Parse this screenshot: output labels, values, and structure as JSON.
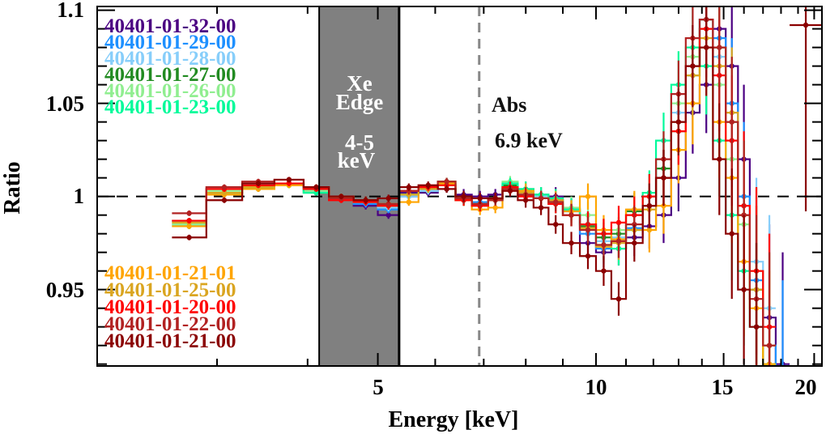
{
  "chart_data": {
    "type": "line",
    "subtype": "step-histogram-with-errorbars",
    "title": "",
    "xlabel": "Energy [keV]",
    "ylabel": "Ratio",
    "xscale": "log",
    "xlim": [
      2.05,
      20.5
    ],
    "ylim": [
      0.909,
      1.102
    ],
    "xticks": [
      5,
      10,
      15,
      20
    ],
    "xtick_labels": [
      "5",
      "10",
      "15",
      "20"
    ],
    "yticks": [
      0.95,
      1,
      1.05,
      1.1
    ],
    "ytick_labels": [
      "0.95",
      "1",
      "1.05",
      "1.1"
    ],
    "grid": false,
    "reference_line": {
      "y": 1,
      "style": "dashed",
      "color": "#000000"
    },
    "shaded_band": {
      "x": [
        4.15,
        5.35
      ],
      "color": "#808080",
      "labels": [
        "Xe",
        "Edge",
        "4-5",
        "keV"
      ]
    },
    "vertical_line": {
      "x": 6.9,
      "style": "dashed",
      "color": "#888888",
      "labels": [
        "Abs",
        "6.9 keV"
      ]
    },
    "bin_edges": [
      2.6,
      2.9,
      3.25,
      3.6,
      3.95,
      4.28,
      4.63,
      5.0,
      5.35,
      5.69,
      6.05,
      6.4,
      6.74,
      7.1,
      7.43,
      7.8,
      8.2,
      8.6,
      9.0,
      9.5,
      10.0,
      10.5,
      11.0,
      11.6,
      12.1,
      12.7,
      13.3,
      13.9,
      14.5,
      15.1,
      15.7,
      16.3,
      17.0,
      17.7,
      18.5,
      20.5
    ],
    "errors": [
      0.0015,
      0.0015,
      0.0015,
      0.0015,
      0.0015,
      0.0015,
      0.002,
      0.002,
      0.002,
      0.002,
      0.002,
      0.003,
      0.003,
      0.003,
      0.003,
      0.004,
      0.004,
      0.005,
      0.006,
      0.007,
      0.008,
      0.009,
      0.01,
      0.012,
      0.015,
      0.018,
      0.022,
      0.026,
      0.03,
      0.035,
      0.04,
      0.045,
      0.05,
      0.06,
      0.1
    ],
    "legend_top": [
      "40401-01-32-00",
      "40401-01-29-00",
      "40401-01-28-00",
      "40401-01-27-00",
      "40401-01-26-00",
      "40401-01-23-00"
    ],
    "legend_bottom": [
      "40401-01-21-01",
      "40401-01-25-00",
      "40401-01-20-00",
      "40401-01-22-00",
      "40401-01-21-00"
    ],
    "series": [
      {
        "name": "40401-01-32-00",
        "color": "#4b0082",
        "values": [
          0.987,
          1.004,
          1.005,
          1.007,
          1.004,
          1.0,
          0.995,
          0.99,
          1.002,
          1.002,
          1.004,
          1.001,
          1.0,
          1.001,
          1.004,
          1.003,
          1.001,
          1.0,
          0.993,
          0.975,
          0.97,
          0.972,
          0.978,
          0.984,
          0.99,
          1.01,
          1.045,
          1.06,
          1.09,
          1.07,
          1.02,
          0.95,
          0.935,
          0.91,
          null
        ]
      },
      {
        "name": "40401-01-29-00",
        "color": "#1e90ff",
        "values": [
          0.985,
          1.002,
          1.006,
          1.007,
          1.003,
          0.999,
          0.996,
          0.993,
          1.0,
          1.003,
          1.006,
          0.998,
          0.997,
          0.999,
          1.004,
          1.001,
          0.999,
          0.998,
          0.992,
          0.98,
          0.972,
          0.976,
          0.983,
          0.995,
          1.01,
          1.04,
          1.07,
          1.095,
          1.085,
          1.05,
          1.0,
          0.955,
          0.92,
          0.895,
          null
        ]
      },
      {
        "name": "40401-01-28-00",
        "color": "#87cefa",
        "values": [
          0.986,
          1.002,
          1.006,
          1.007,
          1.004,
          0.999,
          0.997,
          0.994,
          1.0,
          1.003,
          1.006,
          0.999,
          0.996,
          0.998,
          1.006,
          1.002,
          1.0,
          0.999,
          0.993,
          0.985,
          0.976,
          0.978,
          0.985,
          0.995,
          1.015,
          1.045,
          1.07,
          1.09,
          1.075,
          1.045,
          0.995,
          0.965,
          0.94,
          null,
          null
        ]
      },
      {
        "name": "40401-01-27-00",
        "color": "#228b22",
        "values": [
          0.987,
          1.002,
          1.004,
          1.006,
          1.002,
          1.0,
          0.998,
          0.995,
          1.001,
          1.005,
          1.008,
          0.999,
          0.996,
          0.998,
          1.006,
          1.004,
          0.999,
          0.996,
          0.99,
          0.984,
          0.978,
          0.98,
          0.992,
          1.0,
          1.015,
          1.035,
          1.065,
          1.095,
          1.08,
          1.04,
          0.99,
          0.95,
          0.91,
          null,
          null
        ]
      },
      {
        "name": "40401-01-26-00",
        "color": "#90ee90",
        "values": [
          0.985,
          1.003,
          1.005,
          1.006,
          1.003,
          0.999,
          0.997,
          0.995,
          1.001,
          1.004,
          1.006,
          0.998,
          0.996,
          0.999,
          1.008,
          1.003,
          1.001,
          0.999,
          0.994,
          0.99,
          0.98,
          0.982,
          0.99,
          1.0,
          1.02,
          1.05,
          1.075,
          1.09,
          1.06,
          1.02,
          0.985,
          0.96,
          0.92,
          null,
          null
        ]
      },
      {
        "name": "40401-01-23-00",
        "color": "#00fa9a",
        "values": [
          0.984,
          1.002,
          1.005,
          1.006,
          1.002,
          1.0,
          0.998,
          0.996,
          1.001,
          1.004,
          1.007,
          0.998,
          0.995,
          0.999,
          1.007,
          1.004,
          1.001,
          0.999,
          0.993,
          0.985,
          0.974,
          0.972,
          0.982,
          1.002,
          1.03,
          1.06,
          1.08,
          1.07,
          1.03,
          0.99,
          0.96,
          0.93,
          0.91,
          null,
          null
        ]
      },
      {
        "name": "40401-01-21-01",
        "color": "#ffa500",
        "values": [
          0.984,
          1.001,
          1.004,
          1.006,
          1.005,
          1.0,
          0.998,
          0.996,
          0.997,
          1.004,
          1.007,
          0.998,
          0.993,
          0.994,
          1.004,
          1.003,
          0.999,
          0.997,
          0.992,
          1.0,
          0.982,
          0.977,
          0.993,
          0.982,
          0.995,
          1.025,
          1.05,
          1.08,
          1.04,
          1.01,
          0.965,
          0.94,
          0.91,
          null,
          null
        ]
      },
      {
        "name": "40401-01-25-00",
        "color": "#daa520",
        "values": [
          0.986,
          1.002,
          1.005,
          1.007,
          1.004,
          0.999,
          0.997,
          0.995,
          1.001,
          1.004,
          1.006,
          0.999,
          0.995,
          0.998,
          1.005,
          1.002,
          0.999,
          0.998,
          0.99,
          0.983,
          0.973,
          0.975,
          0.982,
          0.993,
          1.01,
          1.04,
          1.065,
          1.085,
          1.07,
          1.045,
          0.99,
          0.95,
          0.92,
          null,
          null
        ]
      },
      {
        "name": "40401-01-20-00",
        "color": "#ff0000",
        "values": [
          0.987,
          1.004,
          1.006,
          1.007,
          1.004,
          0.998,
          0.997,
          0.995,
          1.003,
          1.005,
          1.006,
          0.998,
          0.995,
          0.999,
          1.005,
          1.0,
          0.999,
          0.996,
          0.99,
          0.985,
          0.98,
          0.986,
          0.99,
          1.0,
          1.01,
          1.035,
          1.07,
          1.09,
          1.065,
          1.03,
          0.995,
          0.96,
          0.93,
          null,
          null
        ]
      },
      {
        "name": "40401-01-22-00",
        "color": "#b22222",
        "values": [
          0.991,
          1.005,
          1.008,
          1.009,
          1.005,
          0.999,
          0.998,
          0.996,
          1.003,
          1.006,
          1.008,
          0.999,
          0.996,
          0.998,
          1.004,
          1.001,
          0.999,
          0.997,
          0.99,
          0.982,
          0.974,
          0.976,
          0.985,
          0.995,
          1.02,
          1.055,
          1.085,
          1.095,
          1.08,
          1.04,
          0.99,
          0.945,
          0.92,
          null,
          null
        ]
      },
      {
        "name": "40401-01-21-00",
        "color": "#8b0000",
        "values": [
          0.978,
          0.998,
          1.007,
          1.009,
          1.005,
          1.0,
          0.998,
          0.999,
          1.005,
          1.006,
          1.004,
          1.0,
          0.999,
          0.999,
          1.003,
          0.998,
          0.994,
          0.985,
          0.975,
          0.968,
          0.96,
          0.945,
          0.975,
          0.995,
          1.01,
          1.04,
          1.07,
          1.08,
          1.02,
          0.98,
          0.95,
          0.93,
          null,
          null,
          1.092
        ]
      }
    ]
  }
}
